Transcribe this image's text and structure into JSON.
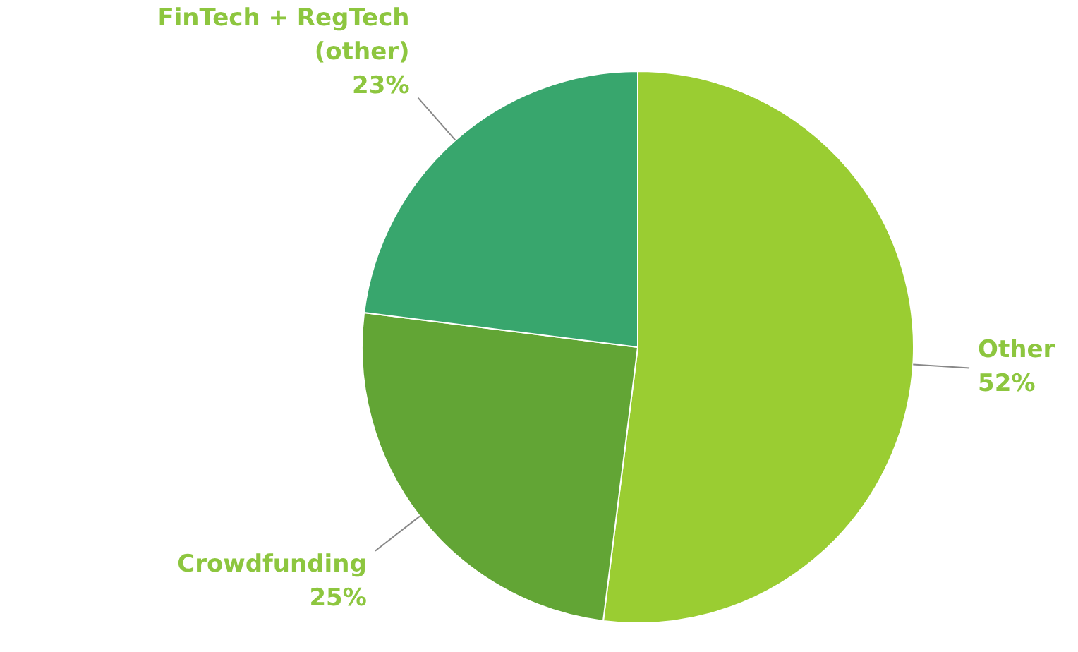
{
  "chart_data": {
    "type": "pie",
    "categories": [
      "Other",
      "Crowdfunding",
      "FinTech + RegTech (other)"
    ],
    "values": [
      52,
      25,
      23
    ],
    "colors": [
      "#9acd32",
      "#62a535",
      "#38a66d"
    ],
    "value_labels": [
      "52%",
      "25%",
      "23%"
    ],
    "legend": false
  }
}
